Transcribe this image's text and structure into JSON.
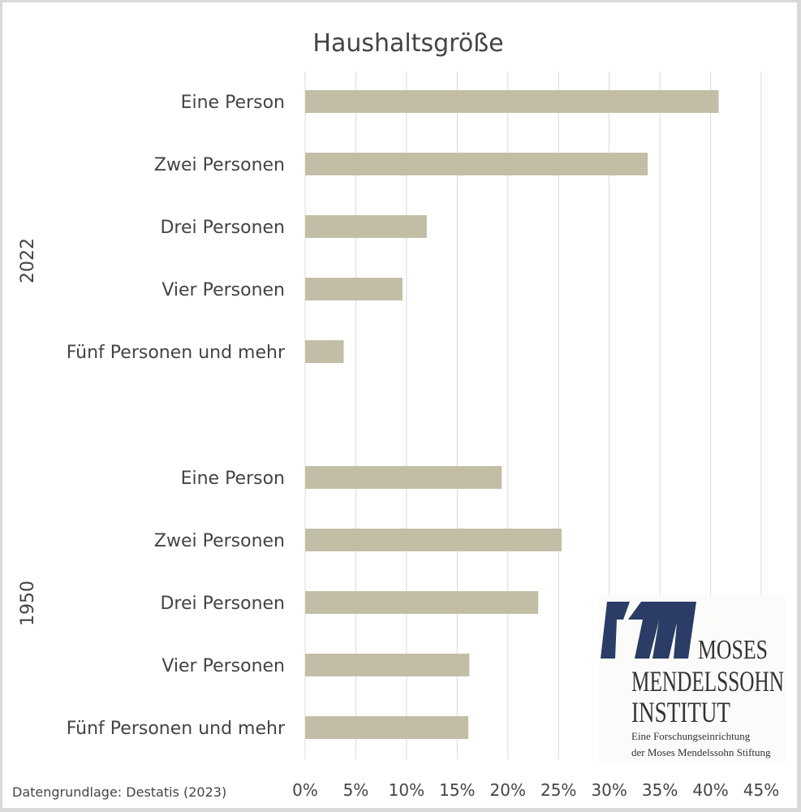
{
  "chart_data": {
    "type": "bar",
    "orientation": "horizontal",
    "title": "Haushaltsgröße",
    "groups": [
      {
        "name": "2022",
        "categories": [
          "Eine Person",
          "Zwei Personen",
          "Drei Personen",
          "Vier Personen",
          "Fünf Personen und mehr"
        ],
        "values": [
          40.8,
          33.8,
          12.0,
          9.6,
          3.8
        ]
      },
      {
        "name": "1950",
        "categories": [
          "Eine Person",
          "Zwei Personen",
          "Drei Personen",
          "Vier Personen",
          "Fünf Personen und mehr"
        ],
        "values": [
          19.4,
          25.3,
          23.0,
          16.2,
          16.1
        ]
      }
    ],
    "unit": "%",
    "xlim": [
      0,
      45
    ],
    "xticks": [
      "0%",
      "5%",
      "10%",
      "15%",
      "20%",
      "25%",
      "30%",
      "35%",
      "40%",
      "45%"
    ],
    "grid": true,
    "bar_color": "#c2bea5",
    "source": "Datengrundlage: Destatis (2023)"
  },
  "logo": {
    "line1": "MOSES",
    "line2": "MENDELSSOHN",
    "line3": "INSTITUT",
    "tagline1": "Eine Forschungseinrichtung",
    "tagline2": "der Moses Mendelssohn Stiftung",
    "color": "#2b3d66"
  }
}
